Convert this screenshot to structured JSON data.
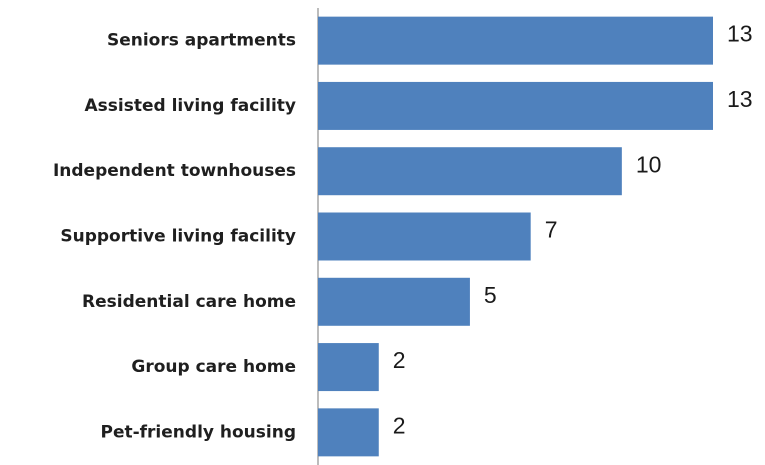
{
  "chart_data": {
    "type": "bar",
    "orientation": "horizontal",
    "categories": [
      "Seniors apartments",
      "Assisted living facility",
      "Independent townhouses",
      "Supportive living facility",
      "Residential care home",
      "Group care home",
      "Pet-friendly housing"
    ],
    "values": [
      13,
      13,
      10,
      7,
      5,
      2,
      2
    ],
    "color": "#4f81bd"
  }
}
